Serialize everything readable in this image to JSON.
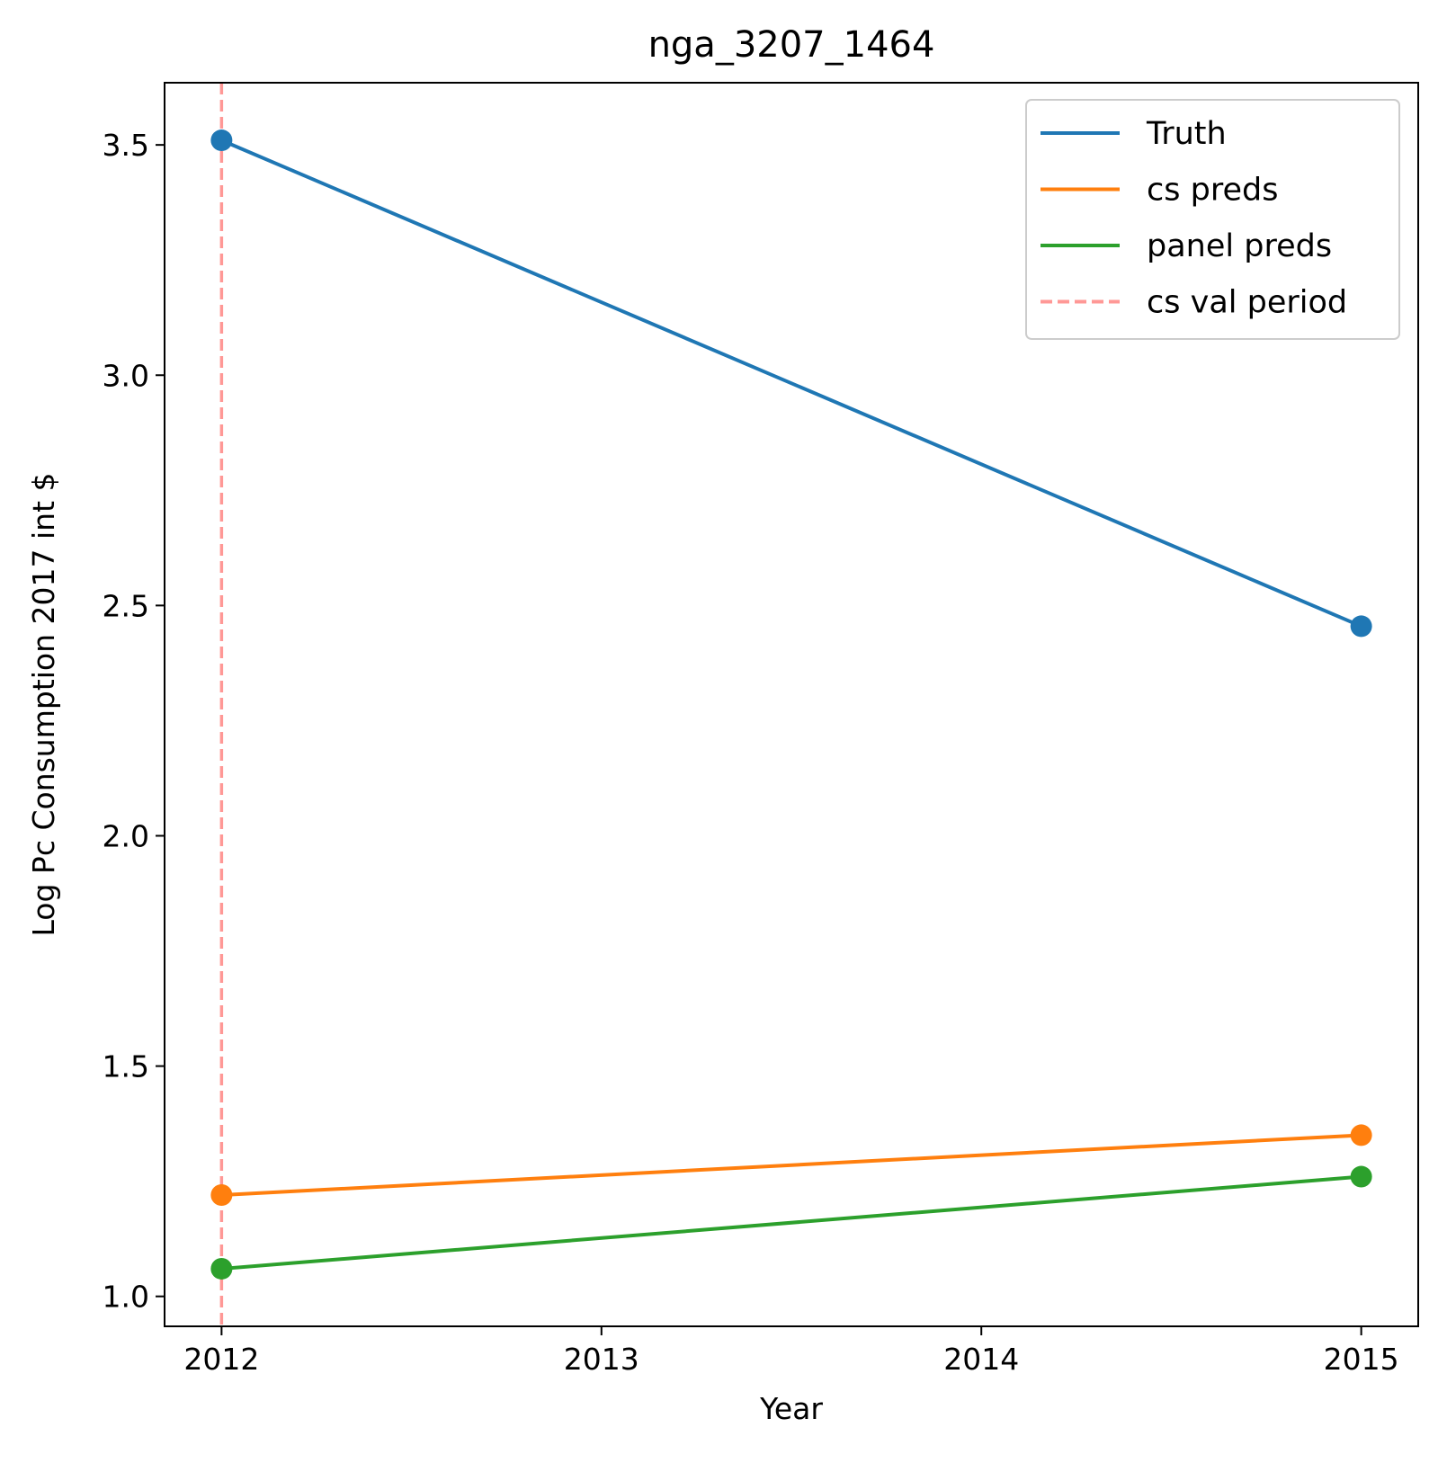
{
  "chart_data": {
    "type": "line",
    "title": "nga_3207_1464",
    "xlabel": "Year",
    "ylabel": "Log Pc Consumption 2017 int $",
    "x": [
      2012,
      2015
    ],
    "xticks": [
      2012,
      2013,
      2014,
      2015
    ],
    "xtick_labels": [
      "2012",
      "2013",
      "2014",
      "2015"
    ],
    "xlim": [
      2011.85,
      2015.15
    ],
    "ylim": [
      0.935,
      3.635
    ],
    "yticks": [
      1.0,
      1.5,
      2.0,
      2.5,
      3.0,
      3.5
    ],
    "ytick_labels": [
      "1.0",
      "1.5",
      "2.0",
      "2.5",
      "3.0",
      "3.5"
    ],
    "series": [
      {
        "name": "Truth",
        "color": "#1f77b4",
        "values": [
          3.51,
          2.455
        ],
        "markers": true
      },
      {
        "name": "cs preds",
        "color": "#ff7f0e",
        "values": [
          1.22,
          1.35
        ],
        "markers": true
      },
      {
        "name": "panel preds",
        "color": "#2ca02c",
        "values": [
          1.06,
          1.26
        ],
        "markers": true
      }
    ],
    "reference_lines": [
      {
        "name": "cs val period",
        "orientation": "vertical",
        "x": 2012,
        "color": "#ff9896",
        "style": "dashed"
      }
    ],
    "legend": {
      "position": "top-right"
    },
    "grid": false
  }
}
